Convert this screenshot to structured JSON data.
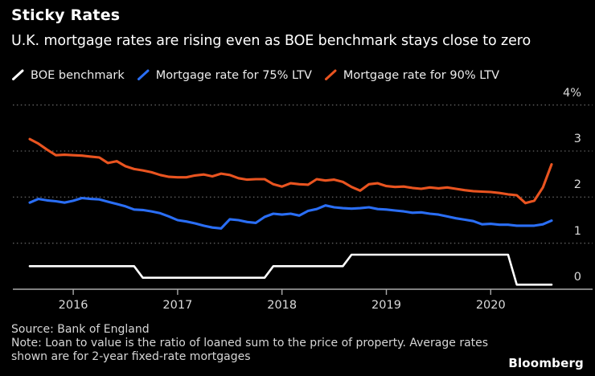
{
  "header": {
    "title": "Sticky Rates",
    "subtitle": "U.K. mortgage rates are rising even as BOE benchmark stays close to zero"
  },
  "footer": {
    "source": "Source: Bank of England",
    "note": "Note: Loan to value is the ratio of loaned sum to the price of property. Average rates shown are for 2-year fixed-rate mortgages",
    "brand": "Bloomberg"
  },
  "colors": {
    "background": "#000000",
    "grid": "#5f5f5f",
    "axis": "#aaaaaa",
    "tick_label": "#dadada",
    "text": "#ffffff",
    "boe_white": "#ffffff",
    "ltv75_blue": "#2a6ef5",
    "ltv90_orange": "#e95420"
  },
  "chart_data": {
    "type": "line",
    "title": "Sticky Rates",
    "subtitle": "U.K. mortgage rates are rising even as BOE benchmark stays close to zero",
    "unit": "%",
    "frequency": "monthly",
    "ylim": [
      0,
      4
    ],
    "grid": "horizontal-dotted",
    "legend_position": "top",
    "months": [
      "2015-08",
      "2015-09",
      "2015-10",
      "2015-11",
      "2015-12",
      "2016-01",
      "2016-02",
      "2016-03",
      "2016-04",
      "2016-05",
      "2016-06",
      "2016-07",
      "2016-08",
      "2016-09",
      "2016-10",
      "2016-11",
      "2016-12",
      "2017-01",
      "2017-02",
      "2017-03",
      "2017-04",
      "2017-05",
      "2017-06",
      "2017-07",
      "2017-08",
      "2017-09",
      "2017-10",
      "2017-11",
      "2017-12",
      "2018-01",
      "2018-02",
      "2018-03",
      "2018-04",
      "2018-05",
      "2018-06",
      "2018-07",
      "2018-08",
      "2018-09",
      "2018-10",
      "2018-11",
      "2018-12",
      "2019-01",
      "2019-02",
      "2019-03",
      "2019-04",
      "2019-05",
      "2019-06",
      "2019-07",
      "2019-08",
      "2019-09",
      "2019-10",
      "2019-11",
      "2019-12",
      "2020-01",
      "2020-02",
      "2020-03",
      "2020-04",
      "2020-05",
      "2020-06",
      "2020-07",
      "2020-08"
    ],
    "series": [
      {
        "id": "boe-benchmark",
        "name": "BOE benchmark",
        "color": "#ffffff",
        "values": [
          0.5,
          0.5,
          0.5,
          0.5,
          0.5,
          0.5,
          0.5,
          0.5,
          0.5,
          0.5,
          0.5,
          0.5,
          0.5,
          0.25,
          0.25,
          0.25,
          0.25,
          0.25,
          0.25,
          0.25,
          0.25,
          0.25,
          0.25,
          0.25,
          0.25,
          0.25,
          0.25,
          0.25,
          0.5,
          0.5,
          0.5,
          0.5,
          0.5,
          0.5,
          0.5,
          0.5,
          0.5,
          0.75,
          0.75,
          0.75,
          0.75,
          0.75,
          0.75,
          0.75,
          0.75,
          0.75,
          0.75,
          0.75,
          0.75,
          0.75,
          0.75,
          0.75,
          0.75,
          0.75,
          0.75,
          0.75,
          0.1,
          0.1,
          0.1,
          0.1,
          0.1
        ]
      },
      {
        "id": "mortgage-75-ltv",
        "name": "Mortgage rate for 75% LTV",
        "color": "#2a6ef5",
        "values": [
          1.88,
          1.96,
          1.93,
          1.91,
          1.88,
          1.92,
          1.98,
          1.96,
          1.95,
          1.9,
          1.85,
          1.8,
          1.73,
          1.72,
          1.69,
          1.65,
          1.58,
          1.5,
          1.47,
          1.43,
          1.38,
          1.34,
          1.32,
          1.52,
          1.5,
          1.46,
          1.44,
          1.57,
          1.64,
          1.62,
          1.64,
          1.6,
          1.7,
          1.74,
          1.82,
          1.78,
          1.76,
          1.75,
          1.76,
          1.78,
          1.74,
          1.73,
          1.71,
          1.69,
          1.66,
          1.67,
          1.64,
          1.62,
          1.58,
          1.54,
          1.51,
          1.48,
          1.41,
          1.42,
          1.4,
          1.4,
          1.38,
          1.38,
          1.38,
          1.41,
          1.49
        ]
      },
      {
        "id": "mortgage-90-ltv",
        "name": "Mortgage rate for 90% LTV",
        "color": "#e95420",
        "values": [
          3.26,
          3.16,
          3.03,
          2.91,
          2.92,
          2.91,
          2.9,
          2.88,
          2.86,
          2.74,
          2.78,
          2.67,
          2.61,
          2.58,
          2.54,
          2.48,
          2.44,
          2.43,
          2.43,
          2.47,
          2.49,
          2.45,
          2.51,
          2.48,
          2.41,
          2.38,
          2.39,
          2.39,
          2.28,
          2.23,
          2.3,
          2.28,
          2.27,
          2.39,
          2.36,
          2.38,
          2.33,
          2.22,
          2.14,
          2.28,
          2.3,
          2.24,
          2.22,
          2.23,
          2.2,
          2.18,
          2.21,
          2.19,
          2.21,
          2.18,
          2.15,
          2.13,
          2.12,
          2.11,
          2.09,
          2.06,
          2.04,
          1.87,
          1.92,
          2.21,
          2.71
        ]
      }
    ],
    "y_ticks": [
      {
        "label": "4%",
        "value": 4
      },
      {
        "label": "3",
        "value": 3
      },
      {
        "label": "2",
        "value": 2
      },
      {
        "label": "1",
        "value": 1
      },
      {
        "label": "0",
        "value": 0
      }
    ],
    "x_ticks": [
      {
        "label": "2016",
        "month": "2016-01"
      },
      {
        "label": "2017",
        "month": "2017-01"
      },
      {
        "label": "2018",
        "month": "2018-01"
      },
      {
        "label": "2019",
        "month": "2019-01"
      },
      {
        "label": "2020",
        "month": "2020-01"
      }
    ]
  }
}
